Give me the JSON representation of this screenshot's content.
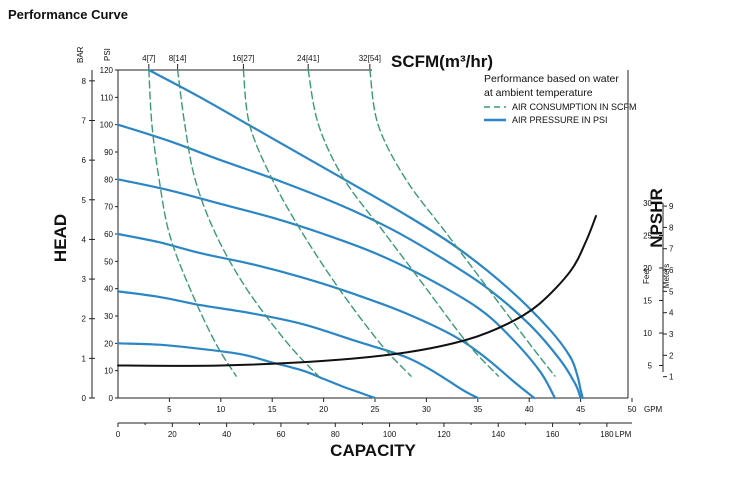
{
  "page_title": "Performance Curve",
  "colors": {
    "pressure": "#2b86c5",
    "scfm": "#3a9a78",
    "npshr": "#111111",
    "axis": "#222222",
    "grid": "#555555"
  },
  "chart_data": {
    "type": "line",
    "title": "SCFM(m³/hr)",
    "xlabel": "CAPACITY",
    "ylabel": "HEAD",
    "right_label": "NPSHR",
    "x_gpm_ticks": [
      "5",
      "10",
      "15",
      "20",
      "25",
      "30",
      "35",
      "40",
      "45",
      "50"
    ],
    "x_gpm_unit": "GPM",
    "x_lpm_ticks": [
      "0",
      "20",
      "40",
      "60",
      "80",
      "100",
      "120",
      "140",
      "160",
      "180"
    ],
    "x_lpm_unit": "LPM",
    "xlim_gpm": [
      0,
      50
    ],
    "y_psi_unit": "PSI",
    "y_psi_ticks": [
      "0",
      "10",
      "20",
      "30",
      "40",
      "50",
      "60",
      "70",
      "80",
      "90",
      "100",
      "110",
      "120"
    ],
    "y_bar_unit": "BAR",
    "y_bar_ticks": [
      "0",
      "1",
      "2",
      "3",
      "4",
      "5",
      "6",
      "7",
      "8"
    ],
    "ylim_psi": [
      0,
      120
    ],
    "npshr_feet_unit": "Feet",
    "npshr_feet_ticks": [
      "5",
      "10",
      "15",
      "20",
      "25",
      "30"
    ],
    "npshr_meters_unit": "Meters",
    "npshr_meters_ticks": [
      "1",
      "2",
      "3",
      "4",
      "5",
      "6",
      "7",
      "8",
      "9"
    ],
    "scfm_top_ticks": [
      "4[7]",
      "8[14]",
      "16[27]",
      "24[41]",
      "32[54]"
    ],
    "legend": {
      "heading_lines": [
        "Performance based on water",
        "at ambient temperature"
      ],
      "items": [
        "AIR CONSUMPTION IN SCFM",
        "AIR PRESSURE IN PSI"
      ]
    },
    "series": [
      {
        "kind": "air_pressure",
        "psi": 120,
        "x": [
          3,
          8,
          15,
          22,
          28,
          33,
          38,
          42,
          44,
          44.7,
          45,
          45.2
        ],
        "y": [
          120,
          110,
          95,
          80,
          67,
          55,
          40,
          25,
          15,
          8,
          3,
          0
        ]
      },
      {
        "kind": "air_pressure",
        "psi": 100,
        "x": [
          0,
          5,
          10,
          16,
          22,
          27,
          32,
          36,
          40,
          43,
          44.5,
          45
        ],
        "y": [
          100,
          94,
          87,
          79,
          70,
          61,
          50,
          40,
          27,
          14,
          5,
          0
        ]
      },
      {
        "kind": "air_pressure",
        "psi": 80,
        "x": [
          0,
          5,
          10,
          15,
          20,
          25,
          30,
          35,
          38,
          41,
          42.5
        ],
        "y": [
          80,
          76,
          71,
          66,
          60,
          53,
          44,
          33,
          23,
          10,
          0
        ]
      },
      {
        "kind": "air_pressure",
        "psi": 60,
        "x": [
          0,
          4,
          8,
          13,
          18,
          23,
          28,
          33,
          36,
          38.5,
          40.5
        ],
        "y": [
          60,
          57,
          53,
          49,
          44,
          38,
          31,
          22,
          14,
          6,
          0
        ]
      },
      {
        "kind": "air_pressure",
        "psi": 40,
        "x": [
          0,
          4,
          8,
          13,
          18,
          23,
          28,
          31,
          33.5,
          35
        ],
        "y": [
          39,
          37,
          34,
          31,
          27,
          21,
          15,
          9,
          3,
          0
        ]
      },
      {
        "kind": "air_pressure",
        "psi": 20,
        "x": [
          0,
          4,
          8,
          12,
          15,
          18,
          20,
          22,
          23.5,
          25
        ],
        "y": [
          20,
          19.5,
          18,
          16,
          13,
          10,
          7,
          4,
          2,
          0
        ]
      },
      {
        "kind": "air_consumption",
        "label": "4[7]",
        "x": [
          3,
          3.3,
          4,
          5,
          7,
          9.5,
          11.5
        ],
        "y": [
          120,
          100,
          80,
          60,
          40,
          20,
          8
        ]
      },
      {
        "kind": "air_consumption",
        "label": "8[14]",
        "x": [
          5.8,
          6.5,
          7.5,
          9.5,
          12.5,
          16.5,
          19.5
        ],
        "y": [
          120,
          100,
          80,
          60,
          40,
          20,
          8
        ]
      },
      {
        "kind": "air_consumption",
        "label": "16[27]",
        "x": [
          12.2,
          12.8,
          15,
          18,
          21.5,
          25.5,
          28.5
        ],
        "y": [
          120,
          100,
          80,
          60,
          40,
          20,
          8
        ]
      },
      {
        "kind": "air_consumption",
        "label": "24[41]",
        "x": [
          18.5,
          19.5,
          22,
          26,
          30,
          34,
          37
        ],
        "y": [
          120,
          100,
          80,
          60,
          40,
          20,
          8
        ]
      },
      {
        "kind": "air_consumption",
        "label": "32[54]",
        "x": [
          24.5,
          25.3,
          28,
          32,
          36,
          40,
          42.5
        ],
        "y": [
          120,
          100,
          80,
          60,
          40,
          20,
          8
        ]
      },
      {
        "kind": "npshr",
        "x": [
          0,
          10,
          20,
          28,
          34,
          38,
          41,
          44,
          45.5,
          46.5
        ],
        "y_ft": [
          5,
          5,
          5.7,
          7,
          9,
          11.5,
          14.5,
          19.5,
          24,
          28
        ]
      }
    ]
  }
}
